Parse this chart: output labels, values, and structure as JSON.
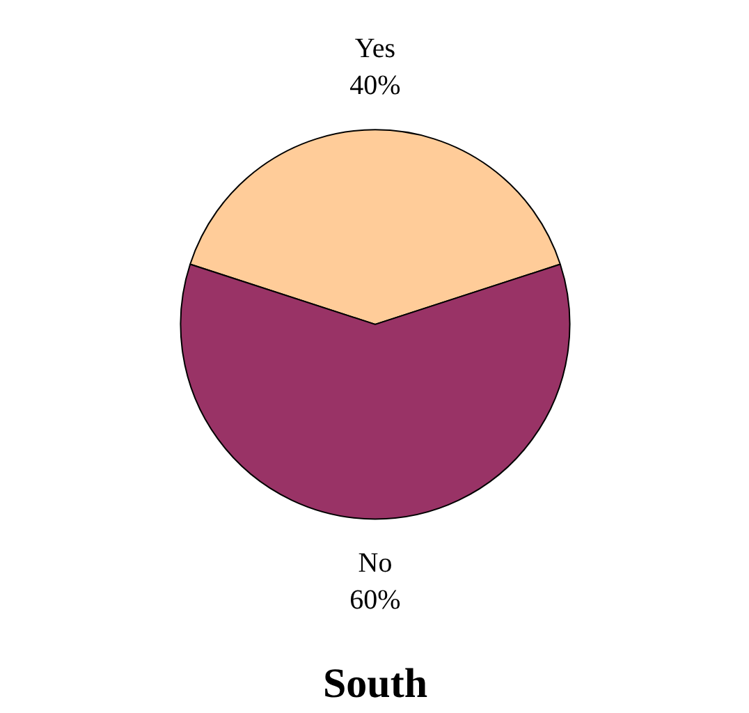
{
  "chart_data": {
    "type": "pie",
    "title": "South",
    "categories": [
      "Yes",
      "No"
    ],
    "values": [
      40,
      60
    ],
    "colors": [
      "#ffcc99",
      "#993366"
    ],
    "value_labels": [
      "40%",
      "60%"
    ]
  }
}
